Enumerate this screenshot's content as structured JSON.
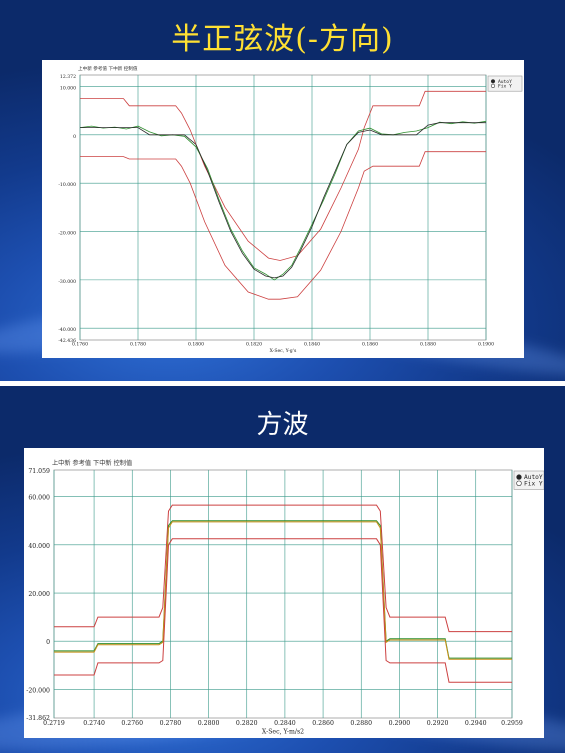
{
  "slides": [
    {
      "title": "半正弦波(-方向)",
      "chart_data": {
        "type": "line",
        "legend_header": "上中新 参考值 下中新 控制值",
        "options": [
          "AutoY",
          "Fix Y"
        ],
        "selected_option": "AutoY",
        "xlabel": "X-Sec, Y-g's",
        "xlim": [
          0.176,
          0.19
        ],
        "ylim": [
          -42.436,
          12.372
        ],
        "y_extremes": [
          "12.372",
          "-42.436"
        ],
        "x_ticks": [
          "0.1760",
          "0.1780",
          "0.1800",
          "0.1820",
          "0.1840",
          "0.1860",
          "0.1880",
          "0.1900"
        ],
        "y_ticks": [
          "10.000",
          "0",
          "-10.000",
          "-20.000",
          "-30.000",
          "-40.000"
        ],
        "series": [
          {
            "color": "#cc4040",
            "x": [
              0.176,
              0.1775,
              0.1777,
              0.1793,
              0.1795,
              0.1798,
              0.1803,
              0.181,
              0.1818,
              0.1825,
              0.1829,
              0.1835,
              0.1843,
              0.185,
              0.1856,
              0.1858,
              0.1861,
              0.1867,
              0.1877,
              0.1879,
              0.19
            ],
            "values": [
              7.5,
              7.5,
              6.0,
              6.0,
              4.5,
              1.0,
              -6.5,
              -15.0,
              -22.0,
              -25.5,
              -26.0,
              -25.0,
              -19.5,
              -11.0,
              -3.0,
              1.5,
              6.0,
              6.0,
              6.0,
              9.0,
              9.0
            ]
          },
          {
            "color": "#2f8f2f",
            "x": [
              0.176,
              0.1764,
              0.1768,
              0.1772,
              0.1776,
              0.178,
              0.1784,
              0.1788,
              0.1792,
              0.1796,
              0.18,
              0.1804,
              0.1808,
              0.1812,
              0.1816,
              0.182,
              0.1824,
              0.1827,
              0.183,
              0.1833,
              0.1836,
              0.184,
              0.1844,
              0.1848,
              0.1852,
              0.1856,
              0.186,
              0.1864,
              0.1868,
              0.1872,
              0.1876,
              0.188,
              0.1884,
              0.1888,
              0.1892,
              0.1896,
              0.19
            ],
            "values": [
              1.5,
              1.8,
              1.4,
              1.6,
              1.2,
              1.8,
              0.6,
              -0.2,
              0.0,
              -0.3,
              -2.5,
              -7.0,
              -13.5,
              -19.5,
              -24.0,
              -27.5,
              -28.8,
              -30.0,
              -28.8,
              -27.0,
              -23.5,
              -18.5,
              -13.5,
              -8.0,
              -2.0,
              0.8,
              1.4,
              0.2,
              0.0,
              0.5,
              0.8,
              1.5,
              2.6,
              2.3,
              2.7,
              2.4,
              2.8
            ]
          },
          {
            "color": "#2a2a2a",
            "x": [
              0.176,
              0.1764,
              0.1768,
              0.1772,
              0.1776,
              0.178,
              0.1784,
              0.1788,
              0.1792,
              0.1796,
              0.18,
              0.1804,
              0.1808,
              0.1812,
              0.1816,
              0.182,
              0.1824,
              0.1827,
              0.183,
              0.1833,
              0.1836,
              0.184,
              0.1844,
              0.1848,
              0.1852,
              0.1856,
              0.186,
              0.1864,
              0.1868,
              0.1872,
              0.1876,
              0.188,
              0.1884,
              0.1888,
              0.1892,
              0.1896,
              0.19
            ],
            "values": [
              1.5,
              1.5,
              1.5,
              1.5,
              1.5,
              1.5,
              0.0,
              0.0,
              0.0,
              0.0,
              -2.0,
              -7.5,
              -14.0,
              -20.0,
              -24.5,
              -27.8,
              -29.2,
              -29.6,
              -29.2,
              -27.4,
              -24.0,
              -19.0,
              -13.0,
              -7.5,
              -2.0,
              0.5,
              1.0,
              0.0,
              0.0,
              0.0,
              0.0,
              2.0,
              2.5,
              2.5,
              2.5,
              2.5,
              2.5
            ]
          },
          {
            "color": "#cc4040",
            "x": [
              0.176,
              0.1775,
              0.1777,
              0.1793,
              0.1795,
              0.1798,
              0.1803,
              0.181,
              0.1818,
              0.1825,
              0.1829,
              0.1835,
              0.1843,
              0.185,
              0.1856,
              0.1858,
              0.1861,
              0.1867,
              0.1877,
              0.1879,
              0.19
            ],
            "values": [
              -4.5,
              -4.5,
              -5.0,
              -5.0,
              -6.5,
              -10.0,
              -18.0,
              -27.0,
              -32.5,
              -34.0,
              -34.0,
              -33.5,
              -28.0,
              -20.0,
              -11.0,
              -7.5,
              -6.5,
              -6.5,
              -6.5,
              -3.5,
              -3.5
            ]
          }
        ]
      }
    },
    {
      "title": "方波",
      "chart_data": {
        "type": "line",
        "legend_header": "上中新 参考值 下中新 控制值",
        "options": [
          "AutoY",
          "Fix Y"
        ],
        "selected_option": "AutoY",
        "xlabel": "X-Sec, Y-m/s2",
        "xlim": [
          0.2719,
          0.2959
        ],
        "ylim": [
          -31.862,
          71.059
        ],
        "y_extremes": [
          "71.059",
          "-31.862"
        ],
        "x_ticks": [
          "0.2719",
          "0.2740",
          "0.2760",
          "0.2780",
          "0.2800",
          "0.2820",
          "0.2840",
          "0.2860",
          "0.2880",
          "0.2900",
          "0.2920",
          "0.2940",
          "0.2959"
        ],
        "y_ticks": [
          "60.000",
          "40.000",
          "20.000",
          "0",
          "-20.000"
        ],
        "series": [
          {
            "color": "#cc4040",
            "x": [
              0.2719,
              0.274,
              0.2742,
              0.2774,
              0.2776,
              0.2779,
              0.2781,
              0.2888,
              0.289,
              0.2893,
              0.2895,
              0.2924,
              0.2926,
              0.2959
            ],
            "values": [
              6.0,
              6.0,
              10.0,
              10.0,
              14.0,
              54.0,
              56.5,
              56.5,
              54.0,
              14.0,
              10.0,
              10.0,
              4.0,
              4.0
            ]
          },
          {
            "color": "#2f8f2f",
            "x": [
              0.2719,
              0.274,
              0.2742,
              0.2774,
              0.2776,
              0.2779,
              0.2781,
              0.2888,
              0.289,
              0.2893,
              0.2895,
              0.2924,
              0.2926,
              0.2959
            ],
            "values": [
              -4.0,
              -4.0,
              -1.0,
              -1.0,
              0.0,
              48.0,
              50.0,
              50.0,
              48.0,
              0.0,
              1.0,
              1.0,
              -7.0,
              -7.0
            ]
          },
          {
            "color": "#c89018",
            "x": [
              0.2719,
              0.274,
              0.2742,
              0.2774,
              0.2776,
              0.2779,
              0.2781,
              0.2888,
              0.289,
              0.2893,
              0.2895,
              0.2924,
              0.2926,
              0.2959
            ],
            "values": [
              -4.5,
              -4.5,
              -1.5,
              -1.5,
              -0.5,
              47.0,
              49.5,
              49.5,
              47.0,
              -0.5,
              0.5,
              0.5,
              -7.5,
              -7.5
            ]
          },
          {
            "color": "#cc4040",
            "x": [
              0.2719,
              0.274,
              0.2742,
              0.2774,
              0.2776,
              0.2779,
              0.2781,
              0.2888,
              0.289,
              0.2893,
              0.2895,
              0.2924,
              0.2926,
              0.2959
            ],
            "values": [
              -14.0,
              -14.0,
              -9.0,
              -9.0,
              -8.0,
              40.0,
              42.5,
              42.5,
              40.0,
              -8.0,
              -9.0,
              -9.0,
              -17.0,
              -17.0
            ]
          }
        ]
      }
    }
  ]
}
